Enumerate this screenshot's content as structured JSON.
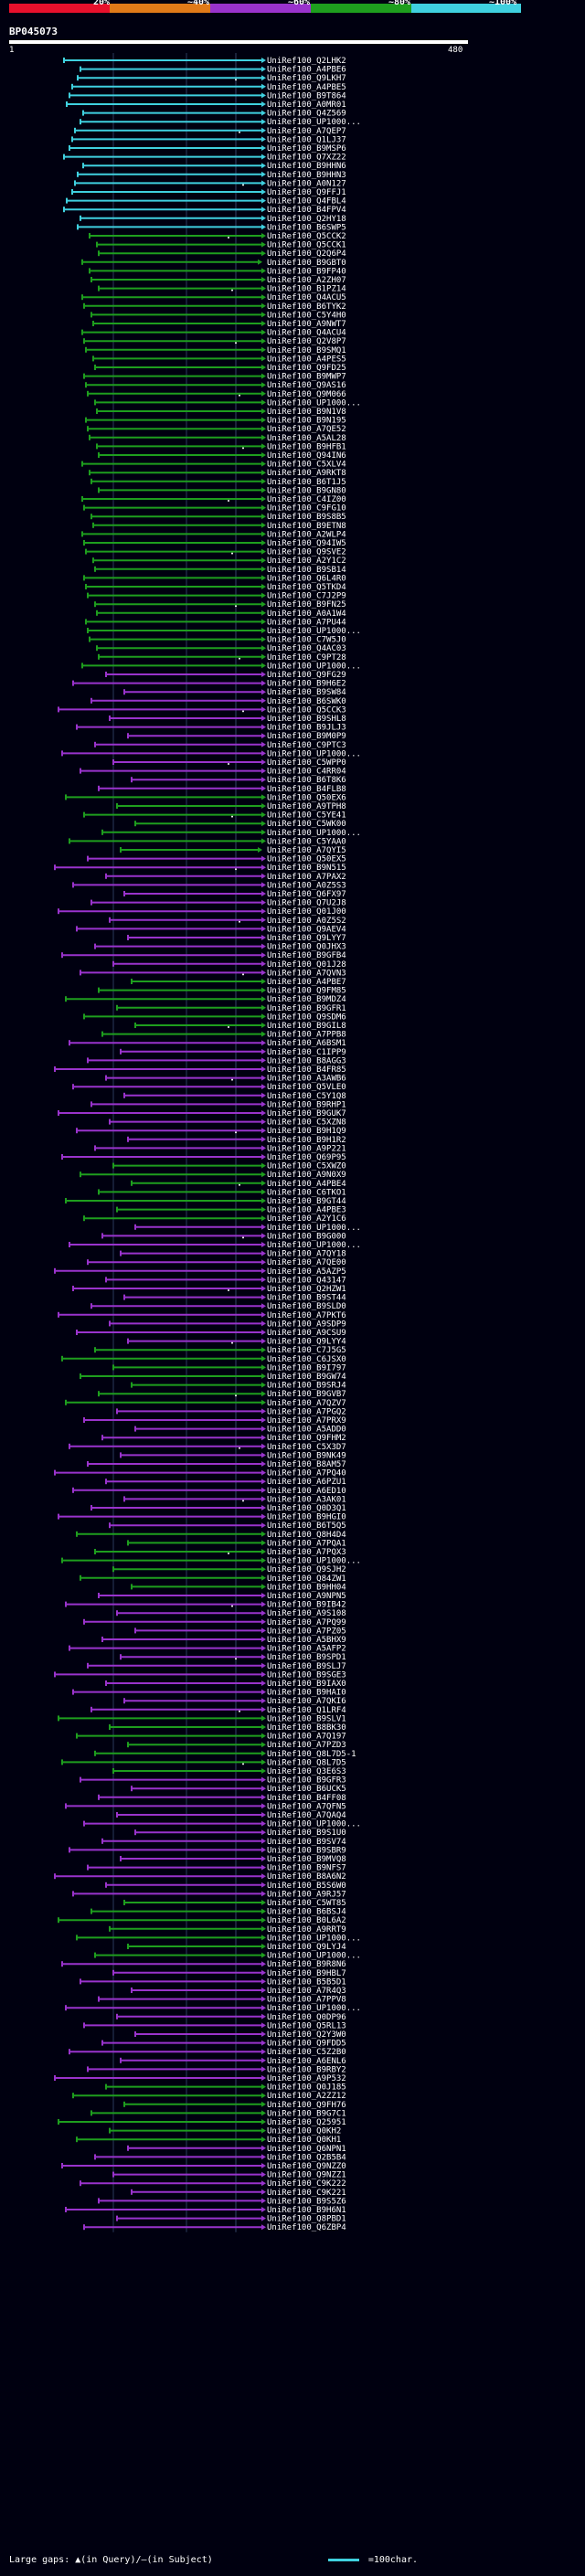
{
  "legend": {
    "labels": [
      "20%",
      "~40%",
      "~60%",
      "~80%",
      "~100%"
    ],
    "colors": [
      "#e8102c",
      "#e07a18",
      "#9933cc",
      "#1e9e1e",
      "#3fd0df"
    ]
  },
  "query": {
    "id": "BP045073",
    "start": "1",
    "end": "480"
  },
  "footer": {
    "gaps_text": "Large gaps: ▲(in Query)/—(in Subject)",
    "scale_text": "=100char."
  },
  "hits": {
    "labels": [
      "UniRef100_Q2LHK2",
      "UniRef100_A4PBE6",
      "UniRef100_Q9LKH7",
      "UniRef100_A4PBE5",
      "UniRef100_B9T864",
      "UniRef100_A0MR01",
      "UniRef100_Q4Z569",
      "UniRef100_UP1000...",
      "UniRef100_A7QEP7",
      "UniRef100_Q1LJ37",
      "UniRef100_B9MSP6",
      "UniRef100_Q7XZ22",
      "UniRef100_B9HHN6",
      "UniRef100_B9HHN3",
      "UniRef100_A0N127",
      "UniRef100_Q9FFJ1",
      "UniRef100_Q4FBL4",
      "UniRef100_B4FPV4",
      "UniRef100_Q2HY18",
      "UniRef100_B6SWP5",
      "UniRef100_Q5CCK2",
      "UniRef100_Q5CCK1",
      "UniRef100_Q2Q6P4",
      "UniRef100_B9GBT0",
      "UniRef100_B9FP40",
      "UniRef100_A2ZH07",
      "UniRef100_B1PZ14",
      "UniRef100_Q4ACU5",
      "UniRef100_B6TYK2",
      "UniRef100_C5Y4H0",
      "UniRef100_A9NWT7",
      "UniRef100_Q4ACU4",
      "UniRef100_Q2V8P7",
      "UniRef100_B9SMQ1",
      "UniRef100_A4PES5",
      "UniRef100_Q9FD25",
      "UniRef100_B9MWP7",
      "UniRef100_Q9AS16",
      "UniRef100_Q9M066",
      "UniRef100_UP1000...",
      "UniRef100_B9N1V8",
      "UniRef100_B9N195",
      "UniRef100_A7QE52",
      "UniRef100_A5AL28",
      "UniRef100_B9HFB1",
      "UniRef100_Q94IN6",
      "UniRef100_C5XLV4",
      "UniRef100_A9RKT8",
      "UniRef100_B6T1J5",
      "UniRef100_B9GN80",
      "UniRef100_C4IZ00",
      "UniRef100_C9FG10",
      "UniRef100_B9S8B5",
      "UniRef100_B9ETN8",
      "UniRef100_A2WLP4",
      "UniRef100_Q94IW5",
      "UniRef100_Q9SVE2",
      "UniRef100_A2Y1C2",
      "UniRef100_B9SB14",
      "UniRef100_Q6L4R0",
      "UniRef100_Q5TKD4",
      "UniRef100_C7J2P9",
      "UniRef100_B9FN25",
      "UniRef100_A0A1W4",
      "UniRef100_A7PU44",
      "UniRef100_UP1000...",
      "UniRef100_C7W5J0",
      "UniRef100_Q4AC03",
      "UniRef100_C9PT28",
      "UniRef100_UP1000...",
      "UniRef100_Q9FG29",
      "UniRef100_B9H6E2",
      "UniRef100_B9SW84",
      "UniRef100_B6SWK0",
      "UniRef100_Q5CCK3",
      "UniRef100_B9SHL8",
      "UniRef100_B9JLJ3",
      "UniRef100_B9M0P9",
      "UniRef100_C9PTC3",
      "UniRef100_UP1000...",
      "UniRef100_C5WPP0",
      "UniRef100_C4RR04",
      "UniRef100_B6T8K6",
      "UniRef100_B4FLB8",
      "UniRef100_Q50EX6",
      "UniRef100_A9TPH8",
      "UniRef100_C5YE41",
      "UniRef100_C5WK00",
      "UniRef100_UP1000...",
      "UniRef100_C5YAA0",
      "UniRef100_A7QYI5",
      "UniRef100_Q50EX5",
      "UniRef100_B9N515",
      "UniRef100_A7PAX2",
      "UniRef100_A0Z5S3",
      "UniRef100_Q6FX97",
      "UniRef100_Q7U2J8",
      "UniRef100_Q01J00",
      "UniRef100_A0Z5S2",
      "UniRef100_Q9AEV4",
      "UniRef100_Q9LYY7",
      "UniRef100_Q0JHX3",
      "UniRef100_B9GFB4",
      "UniRef100_Q01J28",
      "UniRef100_A7QVN3",
      "UniRef100_A4PBE7",
      "UniRef100_Q9FM85",
      "UniRef100_B9MDZ4",
      "UniRef100_B9GFR1",
      "UniRef100_Q9SDM6",
      "UniRef100_B9GIL8",
      "UniRef100_A7PPB8",
      "UniRef100_A6BSM1",
      "UniRef100_C1IPP9",
      "UniRef100_B8AGG3",
      "UniRef100_B4FR85",
      "UniRef100_A3AWB6",
      "UniRef100_Q5VLE0",
      "UniRef100_C5Y1Q8",
      "UniRef100_B9RHP1",
      "UniRef100_B9GUK7",
      "UniRef100_C5XZN8",
      "UniRef100_B9H1Q9",
      "UniRef100_B9H1R2",
      "UniRef100_A9P221",
      "UniRef100_Q69P95",
      "UniRef100_C5XWZ0",
      "UniRef100_A9N0X9",
      "UniRef100_A4PBE4",
      "UniRef100_C6TKO1",
      "UniRef100_B9GT44",
      "UniRef100_A4PBE3",
      "UniRef100_A2Y1C6",
      "UniRef100_UP1000...",
      "UniRef100_B9G000",
      "UniRef100_UP1000...",
      "UniRef100_A7QY18",
      "UniRef100_A7QE00",
      "UniRef100_A5AZP5",
      "UniRef100_Q43147",
      "UniRef100_Q2HZW1",
      "UniRef100_B9ST44",
      "UniRef100_B9SLD0",
      "UniRef100_A7PKT6",
      "UniRef100_A9SDP9",
      "UniRef100_A9CSU9",
      "UniRef100_Q9LYY4",
      "UniRef100_C7J5G5",
      "UniRef100_C6JSX0",
      "UniRef100_B9I797",
      "UniRef100_B9GW74",
      "UniRef100_B9SRJ4",
      "UniRef100_B9GVB7",
      "UniRef100_A7QZV7",
      "UniRef100_A7PGQ2",
      "UniRef100_A7PRX9",
      "UniRef100_A5ADD0",
      "UniRef100_Q9FHM2",
      "UniRef100_C5X3D7",
      "UniRef100_B9NK49",
      "UniRef100_B8AM57",
      "UniRef100_A7PQ40",
      "UniRef100_A6PZU1",
      "UniRef100_A6ED10",
      "UniRef100_A3AK01",
      "UniRef100_Q0D3Q1",
      "UniRef100_B9HGI0",
      "UniRef100_B6T5Q5",
      "UniRef100_Q8H4D4",
      "UniRef100_A7PQA1",
      "UniRef100_A7PQX3",
      "UniRef100_UP1000...",
      "UniRef100_Q9SJH2",
      "UniRef100_Q84ZW1",
      "UniRef100_B9HH04",
      "UniRef100_A9NPN5",
      "UniRef100_B9IB42",
      "UniRef100_A9S108",
      "UniRef100_A7PQ99",
      "UniRef100_A7PZ05",
      "UniRef100_A5BHX9",
      "UniRef100_A5AFP2",
      "UniRef100_B9SPD1",
      "UniRef100_B9SLJ7",
      "UniRef100_B9SGE3",
      "UniRef100_B9IAX0",
      "UniRef100_B9HAI0",
      "UniRef100_A7QKI6",
      "UniRef100_Q1LRF4",
      "UniRef100_B9SLV1",
      "UniRef100_B8BK30",
      "UniRef100_A7Q197",
      "UniRef100_A7PZD3",
      "UniRef100_Q8L7D5-1",
      "UniRef100_Q8L7D5",
      "UniRef100_Q3E6S3",
      "UniRef100_B9GFR3",
      "UniRef100_B6UCK5",
      "UniRef100_B4FF08",
      "UniRef100_A7QFN5",
      "UniRef100_A7QAQ4",
      "UniRef100_UP1000...",
      "UniRef100_B9S1U0",
      "UniRef100_B9SV74",
      "UniRef100_B9SBR9",
      "UniRef100_B9MVQ8",
      "UniRef100_B9NFS7",
      "UniRef100_B8A6N2",
      "UniRef100_B5S6W0",
      "UniRef100_A9RJ57",
      "UniRef100_C5WT85",
      "UniRef100_B6BSJ4",
      "UniRef100_B0L6A2",
      "UniRef100_A9RRT9",
      "UniRef100_UP1000...",
      "UniRef100_Q9LYJ4",
      "UniRef100_UP1000...",
      "UniRef100_B9R8N6",
      "UniRef100_B9HBL7",
      "UniRef100_B5B5D1",
      "UniRef100_A7R4Q3",
      "UniRef100_A7PPV8",
      "UniRef100_UP1000...",
      "UniRef100_Q0DP96",
      "UniRef100_Q5RL13",
      "UniRef100_Q2Y3W0",
      "UniRef100_Q9FDD5",
      "UniRef100_C5Z2B0",
      "UniRef100_A6ENL6",
      "UniRef100_B9RBY2",
      "UniRef100_A9P532",
      "UniRef100_Q0J185",
      "UniRef100_A2ZZ12",
      "UniRef100_Q9FH76",
      "UniRef100_B9G7C1",
      "UniRef100_Q25951",
      "UniRef100_Q0KH2",
      "UniRef100_Q0KH1",
      "UniRef100_Q6NPN1",
      "UniRef100_Q2B5B4",
      "UniRef100_Q9NZZ0",
      "UniRef100_Q9NZZ1",
      "UniRef100_C9K222",
      "UniRef100_C9K221",
      "UniRef100_B9S5Z6",
      "UniRef100_B9H6N1",
      "UniRef100_Q8PBD1",
      "UniRef100_Q6ZBP4"
    ]
  }
}
